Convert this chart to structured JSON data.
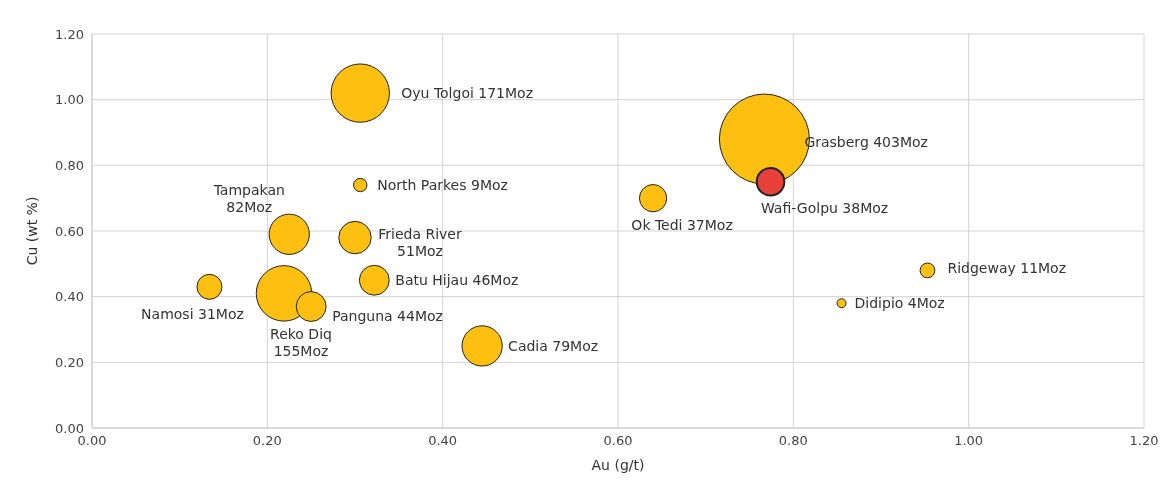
{
  "chart_data": {
    "type": "bubble",
    "xlabel": "Au (g/t)",
    "ylabel": "Cu (wt %)",
    "x": [
      0.306,
      0.306,
      0.225,
      0.3,
      0.322,
      0.134,
      0.219,
      0.25,
      0.445,
      0.64,
      0.767,
      0.774,
      0.855,
      0.953
    ],
    "values": [
      1.02,
      0.74,
      0.59,
      0.58,
      0.45,
      0.43,
      0.41,
      0.37,
      0.25,
      0.7,
      0.88,
      0.75,
      0.38,
      0.48
    ],
    "sizes": [
      0.42,
      0.022,
      0.2,
      0.13,
      0.11,
      0.077,
      0.38,
      0.11,
      0.2,
      0.092,
      1,
      0.094,
      0.01,
      0.027
    ],
    "colors": [
      "#fdc010",
      "#fdc010",
      "#fdc010",
      "#fdc010",
      "#fdc010",
      "#fdc010",
      "#fdc010",
      "#fdc010",
      "#fdc010",
      "#fdc010",
      "#fdc010",
      "#e8403a",
      "#fdc010",
      "#fdc010"
    ],
    "xlim": [
      0,
      1.2
    ],
    "xticks": [
      {
        "value": 0,
        "label": "0.00"
      },
      {
        "value": 0.2,
        "label": "0.20"
      },
      {
        "value": 0.4,
        "label": "0.40"
      },
      {
        "value": 0.6,
        "label": "0.60"
      },
      {
        "value": 0.8,
        "label": "0.80"
      },
      {
        "value": 1,
        "label": "1.00"
      },
      {
        "value": 1.2,
        "label": "1.20"
      }
    ],
    "ylim": [
      0,
      1.2
    ],
    "yticks": [
      {
        "value": 0,
        "label": "0.00"
      },
      {
        "value": 0.2,
        "label": "0.20"
      },
      {
        "value": 0.4,
        "label": "0.40"
      },
      {
        "value": 0.6,
        "label": "0.60"
      },
      {
        "value": 0.8,
        "label": "0.80"
      },
      {
        "value": 1,
        "label": "1.00"
      },
      {
        "value": 1.2,
        "label": "1.20"
      }
    ],
    "grid": true,
    "marker": "circle",
    "legend": false,
    "annotations": [
      {
        "text": "Oyu Tolgoi 171Moz",
        "x": 0.306,
        "y": 1.02
      },
      {
        "text": "North Parkes 9Moz",
        "x": 0.306,
        "y": 0.74
      },
      {
        "text": "Tampakan\n82Moz",
        "x": 0.225,
        "y": 0.59
      },
      {
        "text": "Frieda River\n51Moz",
        "x": 0.3,
        "y": 0.58
      },
      {
        "text": "Batu Hijau 46Moz",
        "x": 0.322,
        "y": 0.45
      },
      {
        "text": "Namosi 31Moz",
        "x": 0.134,
        "y": 0.43
      },
      {
        "text": "Reko Diq\n155Moz",
        "x": 0.219,
        "y": 0.41
      },
      {
        "text": "Panguna 44Moz",
        "x": 0.25,
        "y": 0.37
      },
      {
        "text": "Cadia 79Moz",
        "x": 0.445,
        "y": 0.25
      },
      {
        "text": "Ok Tedi 37Moz",
        "x": 0.64,
        "y": 0.7
      },
      {
        "text": "Grasberg 403Moz",
        "x": 0.767,
        "y": 0.88
      },
      {
        "text": "Wafi-Golpu 38Moz",
        "x": 0.774,
        "y": 0.75
      },
      {
        "text": "Didipio 4Moz",
        "x": 0.855,
        "y": 0.38
      },
      {
        "text": "Ridgeway 11Moz",
        "x": 0.953,
        "y": 0.48
      }
    ]
  }
}
